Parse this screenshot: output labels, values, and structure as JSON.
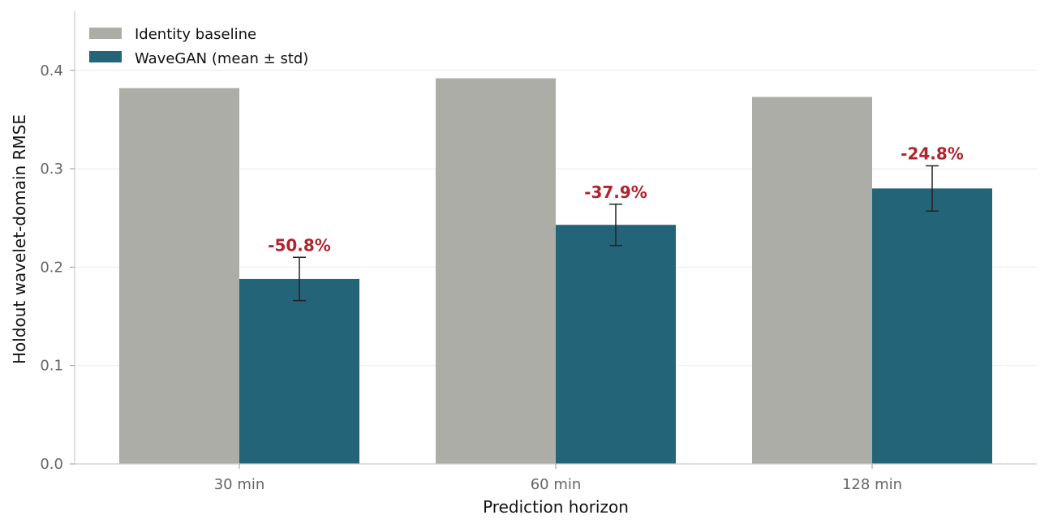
{
  "chart_data": {
    "type": "bar",
    "categories": [
      "30 min",
      "60 min",
      "128 min"
    ],
    "series": [
      {
        "name": "Identity baseline",
        "values": [
          0.382,
          0.392,
          0.373
        ],
        "color": "#adada7"
      },
      {
        "name": "WaveGAN (mean ± std)",
        "values": [
          0.188,
          0.243,
          0.28
        ],
        "errors": [
          0.022,
          0.021,
          0.023
        ],
        "color": "#246479"
      }
    ],
    "annotations": [
      "-50.8%",
      "-37.9%",
      "-24.8%"
    ],
    "annotation_color": "#b0242d",
    "xlabel": "Prediction horizon",
    "ylabel": "Holdout wavelet-domain RMSE",
    "ylim": [
      0,
      0.46
    ],
    "yticks": [
      "0.0",
      "0.1",
      "0.2",
      "0.3",
      "0.4"
    ],
    "grid": true,
    "legend_position": "top-left"
  }
}
